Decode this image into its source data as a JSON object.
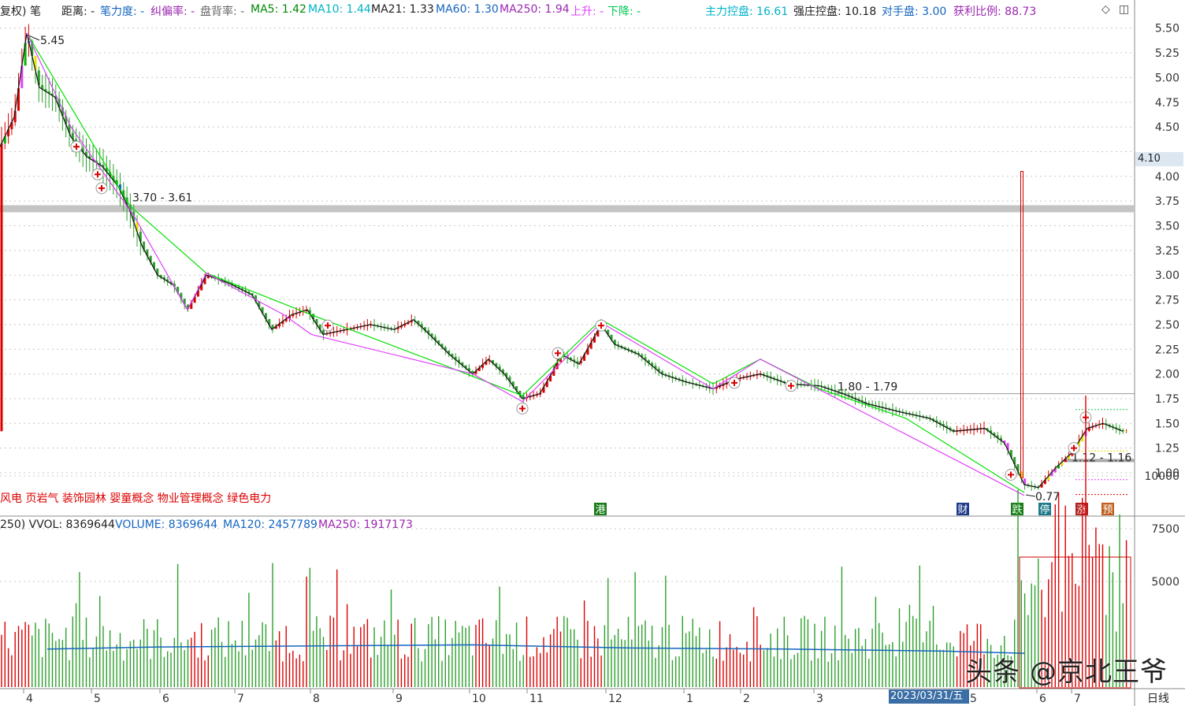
{
  "header": {
    "items": [
      {
        "text": "复权)",
        "color": "#222222"
      },
      {
        "text": "笔",
        "color": "#222222"
      },
      {
        "text": "距离: -",
        "color": "#222222"
      },
      {
        "text": "笔力度: -",
        "color": "#1565c0"
      },
      {
        "text": "纠偏率: -",
        "color": "#9c27b0"
      },
      {
        "text": "盘背率: -",
        "color": "#666666"
      },
      {
        "text": "MA5: 1.42",
        "color": "#008800"
      },
      {
        "text": "MA10: 1.44",
        "color": "#00b3c7"
      },
      {
        "text": "MA21: 1.33",
        "color": "#222222"
      },
      {
        "text": "MA60: 1.30",
        "color": "#1565c0"
      },
      {
        "text": "MA250: 1.94",
        "color": "#9c27b0"
      },
      {
        "text": "上升: -",
        "color": "#e040fb"
      },
      {
        "text": "下降: -",
        "color": "#00c853"
      },
      {
        "text": "主力控盘: 16.61",
        "color": "#00b3c7"
      },
      {
        "text": "强庄控盘: 10.18",
        "color": "#222222"
      },
      {
        "text": "对手盘: 3.00",
        "color": "#1565c0"
      },
      {
        "text": "获利比例: 88.73",
        "color": "#9c27b0"
      }
    ],
    "controls": [
      "◇",
      "◫"
    ]
  },
  "price_tag": "4.10",
  "concepts": "风电 页岩气 装饰园林 婴童概念 物业管理概念 绿色电力",
  "markers": [
    {
      "text": "港",
      "color": "#1a7d1a"
    },
    {
      "text": "财",
      "color": "#1e3a8a"
    },
    {
      "text": "跌",
      "color": "#1a7d1a"
    },
    {
      "text": "停",
      "color": "#1e7a8a"
    },
    {
      "text": "涨",
      "color": "#b22222"
    },
    {
      "text": "预",
      "color": "#c06020"
    }
  ],
  "annotations": {
    "high": "5.45",
    "low": "0.77",
    "zone1": "3.70 - 3.61",
    "zone2": "1.80 - 1.79",
    "zone3": "1.12 - 1.16"
  },
  "volume_header": [
    {
      "text": "250) VVOL: 8369644",
      "color": "#222222"
    },
    {
      "text": "VOLUME: 8369644",
      "color": "#1565c0"
    },
    {
      "text": "MA120: 2457789",
      "color": "#1565c0"
    },
    {
      "text": "MA250: 1917173",
      "color": "#9c27b0"
    }
  ],
  "date_box": "2023/03/31/五",
  "period": "日线",
  "watermark": "头条 @京北王爷",
  "chart_data": {
    "type": "candlestick",
    "price_axis": {
      "ticks": [
        1.0,
        1.25,
        1.5,
        1.75,
        2.0,
        2.25,
        2.5,
        2.75,
        3.0,
        3.25,
        3.5,
        3.75,
        4.0,
        4.25,
        4.5,
        4.75,
        5.0,
        5.25,
        5.5
      ],
      "range": [
        0.6,
        5.6
      ]
    },
    "volume_axis": {
      "ticks": [
        5000,
        7500,
        10000
      ]
    },
    "x_tick_labels": [
      "4",
      "5",
      "6",
      "7",
      "8",
      "9",
      "10",
      "11",
      "12",
      "1",
      "2",
      "3",
      "5",
      "6",
      "7"
    ],
    "close_path": [
      [
        0,
        4.3
      ],
      [
        18,
        4.6
      ],
      [
        34,
        5.45
      ],
      [
        50,
        4.9
      ],
      [
        70,
        4.8
      ],
      [
        90,
        4.4
      ],
      [
        110,
        4.2
      ],
      [
        130,
        4.1
      ],
      [
        150,
        3.9
      ],
      [
        165,
        3.65
      ],
      [
        180,
        3.3
      ],
      [
        200,
        3.0
      ],
      [
        220,
        2.9
      ],
      [
        238,
        2.65
      ],
      [
        262,
        3.0
      ],
      [
        290,
        2.92
      ],
      [
        320,
        2.8
      ],
      [
        345,
        2.45
      ],
      [
        370,
        2.6
      ],
      [
        390,
        2.65
      ],
      [
        410,
        2.4
      ],
      [
        440,
        2.45
      ],
      [
        470,
        2.5
      ],
      [
        500,
        2.45
      ],
      [
        525,
        2.55
      ],
      [
        545,
        2.4
      ],
      [
        570,
        2.2
      ],
      [
        600,
        2.0
      ],
      [
        620,
        2.15
      ],
      [
        640,
        2.0
      ],
      [
        663,
        1.75
      ],
      [
        685,
        1.8
      ],
      [
        700,
        2.0
      ],
      [
        712,
        2.2
      ],
      [
        735,
        2.1
      ],
      [
        763,
        2.5
      ],
      [
        780,
        2.3
      ],
      [
        810,
        2.2
      ],
      [
        840,
        2.0
      ],
      [
        870,
        1.92
      ],
      [
        905,
        1.85
      ],
      [
        935,
        1.95
      ],
      [
        965,
        2.0
      ],
      [
        1000,
        1.9
      ],
      [
        1040,
        1.88
      ],
      [
        1070,
        1.8
      ],
      [
        1100,
        1.7
      ],
      [
        1140,
        1.62
      ],
      [
        1180,
        1.55
      ],
      [
        1210,
        1.42
      ],
      [
        1250,
        1.45
      ],
      [
        1275,
        1.3
      ],
      [
        1300,
        0.88
      ],
      [
        1318,
        0.85
      ],
      [
        1340,
        1.05
      ],
      [
        1360,
        1.2
      ],
      [
        1380,
        1.45
      ],
      [
        1400,
        1.5
      ],
      [
        1425,
        1.42
      ]
    ],
    "upper_band_path": [
      [
        34,
        5.45
      ],
      [
        165,
        3.7
      ],
      [
        262,
        3.02
      ],
      [
        395,
        2.6
      ],
      [
        560,
        2.1
      ],
      [
        663,
        1.78
      ],
      [
        763,
        2.55
      ],
      [
        905,
        1.9
      ],
      [
        965,
        2.15
      ],
      [
        1040,
        1.85
      ],
      [
        1150,
        1.55
      ],
      [
        1300,
        0.8
      ]
    ],
    "lower_band_path": [
      [
        34,
        5.45
      ],
      [
        90,
        4.5
      ],
      [
        170,
        3.6
      ],
      [
        238,
        2.65
      ],
      [
        262,
        3.02
      ],
      [
        360,
        2.6
      ],
      [
        395,
        2.4
      ],
      [
        600,
        2.0
      ],
      [
        663,
        1.72
      ],
      [
        763,
        2.52
      ],
      [
        905,
        1.85
      ],
      [
        965,
        2.15
      ],
      [
        1300,
        0.77
      ]
    ],
    "spike": {
      "x": 1297,
      "high": 4.05,
      "low": 0.95
    },
    "volume_ma": [
      [
        60,
        1800
      ],
      [
        200,
        1900
      ],
      [
        400,
        1950
      ],
      [
        600,
        2000
      ],
      [
        800,
        1850
      ],
      [
        1000,
        1800
      ],
      [
        1200,
        1700
      ],
      [
        1300,
        1600
      ]
    ]
  }
}
